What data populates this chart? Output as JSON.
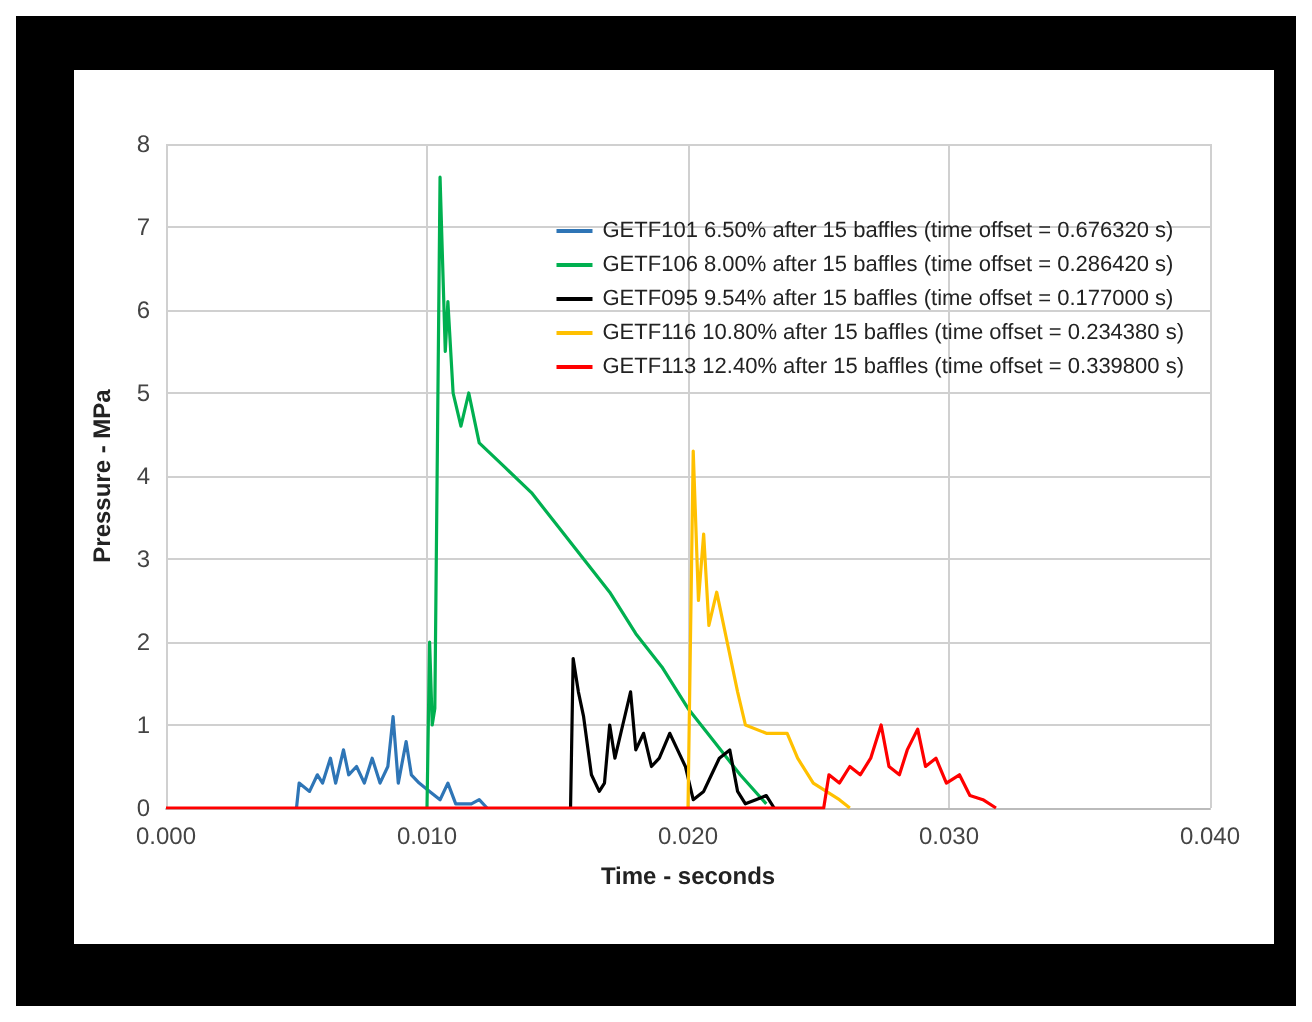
{
  "chart_data": {
    "type": "line",
    "xlabel": "Time - seconds",
    "ylabel": "Pressure - MPa",
    "xlim": [
      0,
      0.04
    ],
    "xticks": [
      {
        "value": 0,
        "label": "0.000"
      },
      {
        "value": 0.01,
        "label": "0.010"
      },
      {
        "value": 0.02,
        "label": "0.020"
      },
      {
        "value": 0.03,
        "label": "0.030"
      },
      {
        "value": 0.04,
        "label": "0.040"
      }
    ],
    "ylim": [
      0,
      8
    ],
    "yticks": [
      0,
      1,
      2,
      3,
      4,
      5,
      6,
      7,
      8
    ],
    "grid": true,
    "legend": "top right",
    "marker": "none",
    "line_style": "solid",
    "series": [
      {
        "name": "GETF101 6.50% after 15 baffles (time offset = 0.676320 s)",
        "color": "#2e75b6",
        "x": [
          0.005,
          0.0051,
          0.0055,
          0.0058,
          0.006,
          0.0063,
          0.0065,
          0.0068,
          0.007,
          0.0073,
          0.0076,
          0.0079,
          0.0082,
          0.0085,
          0.0087,
          0.0089,
          0.0092,
          0.0094,
          0.0097,
          0.0101,
          0.0105,
          0.0108,
          0.0111,
          0.0117,
          0.012,
          0.0123
        ],
        "values": [
          0,
          0.3,
          0.2,
          0.4,
          0.3,
          0.6,
          0.3,
          0.7,
          0.4,
          0.5,
          0.3,
          0.6,
          0.3,
          0.5,
          1.1,
          0.3,
          0.8,
          0.4,
          0.3,
          0.2,
          0.1,
          0.3,
          0.05,
          0.05,
          0.1,
          0
        ]
      },
      {
        "name": "GETF106 8.00% after 15 baffles (time offset = 0.286420 s)",
        "color": "#00b050",
        "x": [
          0.01,
          0.0101,
          0.0102,
          0.0103,
          0.0105,
          0.0107,
          0.0108,
          0.011,
          0.0113,
          0.0116,
          0.012,
          0.013,
          0.014,
          0.015,
          0.016,
          0.017,
          0.018,
          0.019,
          0.02,
          0.021,
          0.022,
          0.023
        ],
        "values": [
          0,
          2,
          1,
          1.2,
          7.6,
          5.5,
          6.1,
          5,
          4.6,
          5,
          4.4,
          4.1,
          3.8,
          3.4,
          3,
          2.6,
          2.1,
          1.7,
          1.2,
          0.8,
          0.4,
          0.05
        ]
      },
      {
        "name": "GETF095 9.54% after 15 baffles (time offset = 0.177000 s)",
        "color": "#000000",
        "x": [
          0.0155,
          0.0156,
          0.0158,
          0.016,
          0.0163,
          0.0166,
          0.0168,
          0.017,
          0.0172,
          0.0175,
          0.0178,
          0.018,
          0.0183,
          0.0186,
          0.0189,
          0.0193,
          0.0196,
          0.0199,
          0.0202,
          0.0206,
          0.0209,
          0.0212,
          0.0216,
          0.0219,
          0.0222,
          0.0226,
          0.023,
          0.0233
        ],
        "values": [
          0,
          1.8,
          1.4,
          1.1,
          0.4,
          0.2,
          0.3,
          1,
          0.6,
          1,
          1.4,
          0.7,
          0.9,
          0.5,
          0.6,
          0.9,
          0.7,
          0.5,
          0.1,
          0.2,
          0.4,
          0.6,
          0.7,
          0.2,
          0.05,
          0.1,
          0.15,
          0
        ]
      },
      {
        "name": "GETF116 10.80% after 15 baffles (time offset = 0.234380 s)",
        "color": "#ffc000",
        "x": [
          0.02,
          0.0202,
          0.0204,
          0.0206,
          0.0208,
          0.0211,
          0.0215,
          0.0219,
          0.0222,
          0.023,
          0.0238,
          0.0242,
          0.0248,
          0.0258,
          0.0262
        ],
        "values": [
          0,
          4.3,
          2.5,
          3.3,
          2.2,
          2.6,
          2,
          1.4,
          1,
          0.9,
          0.9,
          0.6,
          0.3,
          0.1,
          0
        ]
      },
      {
        "name": "GETF113 12.40% after 15 baffles (time offset = 0.339800 s)",
        "color": "#ff0000",
        "x": [
          0,
          0.0252,
          0.0254,
          0.0258,
          0.0262,
          0.0266,
          0.027,
          0.0274,
          0.0277,
          0.0281,
          0.0284,
          0.0288,
          0.0291,
          0.0295,
          0.0299,
          0.0304,
          0.0308,
          0.0313,
          0.0318
        ],
        "values": [
          0,
          0,
          0.4,
          0.3,
          0.5,
          0.4,
          0.6,
          1,
          0.5,
          0.4,
          0.7,
          0.95,
          0.5,
          0.6,
          0.3,
          0.4,
          0.15,
          0.1,
          0
        ]
      }
    ]
  }
}
